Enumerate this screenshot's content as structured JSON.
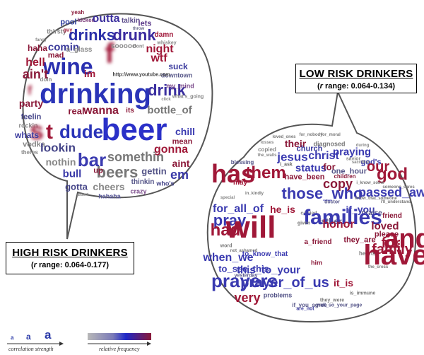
{
  "high_risk": {
    "title": "HIGH RISK DRINKERS",
    "range_prefix": "r",
    "range_value": " range: 0.064-0.177)",
    "range_open": "(",
    "words": [
      {
        "t": "yeah",
        "c": "#8a1a3a",
        "s": 8
      },
      {
        "t": "pool",
        "c": "#2d3b9a",
        "s": 11
      },
      {
        "t": "kicked",
        "c": "#7a3a7a",
        "s": 8
      },
      {
        "t": "outta",
        "c": "#3b2f9e",
        "s": 16
      },
      {
        "t": "talkin",
        "c": "#5a4a8a",
        "s": 10
      },
      {
        "t": "lets",
        "c": "#5c3a8a",
        "s": 11
      },
      {
        "t": "throw",
        "c": "#666688",
        "s": 6
      },
      {
        "t": "thirsty",
        "c": "#888888",
        "s": 9
      },
      {
        "t": "guy",
        "c": "#a01838",
        "s": 7
      },
      {
        "t": "drinks",
        "c": "#2a2fa8",
        "s": 22
      },
      {
        "t": "drunk",
        "c": "#3a2a9e",
        "s": 22
      },
      {
        "t": "damn",
        "c": "#a0183a",
        "s": 10
      },
      {
        "t": "whiskey",
        "c": "#888888",
        "s": 7
      },
      {
        "t": "fancy",
        "c": "#888888",
        "s": 6
      },
      {
        "t": "haha",
        "c": "#8a1838",
        "s": 12
      },
      {
        "t": "comin",
        "c": "#3a3a9a",
        "s": 15
      },
      {
        "t": "a_glass",
        "c": "#888888",
        "s": 10
      },
      {
        "t": "f",
        "c": "#a01838",
        "s": 40,
        "blur": true
      },
      {
        "t": "sooooo",
        "c": "#888888",
        "s": 10
      },
      {
        "t": "dont",
        "c": "#888888",
        "s": 7
      },
      {
        "t": "night",
        "c": "#a01838",
        "s": 16
      },
      {
        "t": "mad",
        "c": "#8a1838",
        "s": 11
      },
      {
        "t": "wine",
        "c": "#2a30b0",
        "s": 32
      },
      {
        "t": "wtf",
        "c": "#a01838",
        "s": 16
      },
      {
        "t": "hell",
        "c": "#a01838",
        "s": 16
      },
      {
        "t": "suck",
        "c": "#3a3a9e",
        "s": 12
      },
      {
        "t": "downtown",
        "c": "#5a5a8a",
        "s": 9
      },
      {
        "t": "im",
        "c": "#a01838",
        "s": 14
      },
      {
        "t": "http://www.youtube.com",
        "c": "#444444",
        "s": 7
      },
      {
        "t": "ain't",
        "c": "#8a1a3a",
        "s": 18
      },
      {
        "t": "doin",
        "c": "#888888",
        "s": 8
      },
      {
        "t": "drinking",
        "c": "#2a34b8",
        "s": 40
      },
      {
        "t": "drink",
        "c": "#3a2fa0",
        "s": 22
      },
      {
        "t": "my_mind",
        "c": "#7a4a8a",
        "s": 9
      },
      {
        "t": "what's_going",
        "c": "#888888",
        "s": 7
      },
      {
        "t": "f",
        "c": "#a01838",
        "s": 18,
        "blur": true
      },
      {
        "t": "party",
        "c": "#8a1838",
        "s": 14
      },
      {
        "t": "click",
        "c": "#888888",
        "s": 6
      },
      {
        "t": "feelin",
        "c": "#444488",
        "s": 11
      },
      {
        "t": "real",
        "c": "#8a1838",
        "s": 13
      },
      {
        "t": "wanna",
        "c": "#8a1838",
        "s": 16
      },
      {
        "t": "its",
        "c": "#8a1838",
        "s": 10
      },
      {
        "t": "bottle_of",
        "c": "#777777",
        "s": 15
      },
      {
        "t": "rockin",
        "c": "#888888",
        "s": 9
      },
      {
        "t": "s",
        "c": "#a01838",
        "s": 36,
        "blur": true
      },
      {
        "t": "t",
        "c": "#a01838",
        "s": 30
      },
      {
        "t": "dude",
        "c": "#2a34b8",
        "s": 26
      },
      {
        "t": "beer",
        "c": "#2a30c8",
        "s": 44
      },
      {
        "t": "chill",
        "c": "#3a3ab0",
        "s": 14
      },
      {
        "t": "mean",
        "c": "#8a1a3a",
        "s": 11
      },
      {
        "t": "whats",
        "c": "#3a3a9e",
        "s": 12
      },
      {
        "t": "vodka",
        "c": "#888888",
        "s": 11
      },
      {
        "t": "lookin",
        "c": "#444488",
        "s": 17
      },
      {
        "t": "somethin",
        "c": "#777777",
        "s": 18
      },
      {
        "t": "gonna",
        "c": "#a01838",
        "s": 16
      },
      {
        "t": "theres",
        "c": "#888888",
        "s": 8
      },
      {
        "t": "nothin",
        "c": "#888888",
        "s": 14
      },
      {
        "t": "bar",
        "c": "#3a3ab0",
        "s": 26
      },
      {
        "t": "aint",
        "c": "#8a1838",
        "s": 14
      },
      {
        "t": "gettin",
        "c": "#555588",
        "s": 13
      },
      {
        "t": "em",
        "c": "#3a3aa8",
        "s": 18
      },
      {
        "t": "beers",
        "c": "#777777",
        "s": 22
      },
      {
        "t": "bull",
        "c": "#3a3aa8",
        "s": 15
      },
      {
        "t": "up",
        "c": "#8a1838",
        "s": 11
      },
      {
        "t": "gotta",
        "c": "#444488",
        "s": 13
      },
      {
        "t": "cheers",
        "c": "#888888",
        "s": 14
      },
      {
        "t": "thinkin",
        "c": "#555588",
        "s": 10
      },
      {
        "t": "who's",
        "c": "#444488",
        "s": 9
      },
      {
        "t": "crazy",
        "c": "#7a4a8a",
        "s": 9
      },
      {
        "t": "hahaha",
        "c": "#5a5a9a",
        "s": 9
      },
      {
        "t": "albert",
        "c": "#888888",
        "s": 6
      }
    ]
  },
  "low_risk": {
    "title": "LOW RISK DRINKERS",
    "range_prefix": "r",
    "range_value": " range: 0.064-0.134)",
    "range_open": "(",
    "words": [
      {
        "t": "loved_ones",
        "c": "#777777",
        "s": 6
      },
      {
        "t": "for_nobody",
        "c": "#777777",
        "s": 6
      },
      {
        "t": "for_moral",
        "c": "#777777",
        "s": 6
      },
      {
        "t": "their",
        "c": "#8a1838",
        "s": 14
      },
      {
        "t": "losses",
        "c": "#888888",
        "s": 6
      },
      {
        "t": "diagnosed",
        "c": "#777777",
        "s": 9
      },
      {
        "t": "church",
        "c": "#3a3a9e",
        "s": 11
      },
      {
        "t": "copied",
        "c": "#888888",
        "s": 8
      },
      {
        "t": "praying",
        "c": "#3a3ab0",
        "s": 15
      },
      {
        "t": "during",
        "c": "#888888",
        "s": 6
      },
      {
        "t": "the_walls",
        "c": "#888888",
        "s": 6
      },
      {
        "t": "jesus",
        "c": "#3a3ab0",
        "s": 17
      },
      {
        "t": "christ",
        "c": "#3a3ab0",
        "s": 16
      },
      {
        "t": "savior",
        "c": "#888888",
        "s": 7
      },
      {
        "t": "god's",
        "c": "#3a3aa8",
        "s": 11
      },
      {
        "t": "blessing",
        "c": "#555588",
        "s": 8
      },
      {
        "t": "i_ask",
        "c": "#666666",
        "s": 7
      },
      {
        "t": "status",
        "c": "#3a3ab0",
        "s": 15
      },
      {
        "t": "for",
        "c": "#8a1838",
        "s": 13
      },
      {
        "t": "sacrifice",
        "c": "#888888",
        "s": 6
      },
      {
        "t": "our",
        "c": "#a01838",
        "s": 20
      },
      {
        "t": "has",
        "c": "#a01838",
        "s": 36
      },
      {
        "t": "them",
        "c": "#a01838",
        "s": 24
      },
      {
        "t": "have_been",
        "c": "#8a1838",
        "s": 11
      },
      {
        "t": "one_hour",
        "c": "#555588",
        "s": 11
      },
      {
        "t": "may",
        "c": "#a01838",
        "s": 10
      },
      {
        "t": "children",
        "c": "#8a1838",
        "s": 8
      },
      {
        "t": "god",
        "c": "#a01838",
        "s": 24
      },
      {
        "t": "copy",
        "c": "#8a1838",
        "s": 18
      },
      {
        "t": "i_know_some",
        "c": "#777777",
        "s": 6
      },
      {
        "t": "someone_cares",
        "c": "#777777",
        "s": 6
      },
      {
        "t": "passed_away",
        "c": "#3a3ab0",
        "s": 18
      },
      {
        "t": "in_kindly",
        "c": "#777777",
        "s": 6
      },
      {
        "t": "those_who",
        "c": "#3a3ab0",
        "s": 22
      },
      {
        "t": "doctor",
        "c": "#555588",
        "s": 7
      },
      {
        "t": "know_that_someone",
        "c": "#777777",
        "s": 6
      },
      {
        "t": "i'll_understand",
        "c": "#777777",
        "s": 6
      },
      {
        "t": "special",
        "c": "#888888",
        "s": 6
      },
      {
        "t": "for_all_of",
        "c": "#3a3ab0",
        "s": 16
      },
      {
        "t": "he_is",
        "c": "#a01838",
        "s": 14
      },
      {
        "t": "if_you",
        "c": "#3a3ab0",
        "s": 14
      },
      {
        "t": "carried",
        "c": "#888888",
        "s": 7
      },
      {
        "t": "praise",
        "c": "#555588",
        "s": 10
      },
      {
        "t": "friend",
        "c": "#8a1838",
        "s": 10
      },
      {
        "t": "father",
        "c": "#555588",
        "s": 12
      },
      {
        "t": "pray",
        "c": "#3a3ab0",
        "s": 22
      },
      {
        "t": "families",
        "c": "#3a3ab0",
        "s": 30
      },
      {
        "t": "given",
        "c": "#777777",
        "s": 7
      },
      {
        "t": "honor",
        "c": "#a01838",
        "s": 16
      },
      {
        "t": "loved",
        "c": "#8a1838",
        "s": 15
      },
      {
        "t": "had",
        "c": "#a01838",
        "s": 24
      },
      {
        "t": "will",
        "c": "#a01838",
        "s": 44
      },
      {
        "t": "they_are",
        "c": "#8a1838",
        "s": 11
      },
      {
        "t": "please",
        "c": "#8a1838",
        "s": 11
      },
      {
        "t": "and",
        "c": "#a01838",
        "s": 38
      },
      {
        "t": "a_friend",
        "c": "#8a1838",
        "s": 10
      },
      {
        "t": "for",
        "c": "#a01838",
        "s": 20
      },
      {
        "t": "word",
        "c": "#777777",
        "s": 7
      },
      {
        "t": "not_ashamed",
        "c": "#777777",
        "s": 6
      },
      {
        "t": "to_know_that",
        "c": "#3a3ab0",
        "s": 10
      },
      {
        "t": "family",
        "c": "#a01838",
        "s": 20
      },
      {
        "t": "when_we",
        "c": "#3a3ab0",
        "s": 16
      },
      {
        "t": "hearts",
        "c": "#777777",
        "s": 8
      },
      {
        "t": "have",
        "c": "#a01838",
        "s": 40
      },
      {
        "t": "him",
        "c": "#8a1838",
        "s": 9
      },
      {
        "t": "to_see_this",
        "c": "#3a3ab0",
        "s": 13
      },
      {
        "t": "this_to_your",
        "c": "#3a3ab0",
        "s": 15
      },
      {
        "t": "the_cross",
        "c": "#777777",
        "s": 6
      },
      {
        "t": "yesterday",
        "c": "#555588",
        "s": 7
      },
      {
        "t": "prayers",
        "c": "#3a3ab0",
        "s": 26
      },
      {
        "t": "prayer_of_us",
        "c": "#3a3ab0",
        "s": 20
      },
      {
        "t": "it_is",
        "c": "#a01838",
        "s": 14
      },
      {
        "t": "very",
        "c": "#a01838",
        "s": 18
      },
      {
        "t": "problems",
        "c": "#555588",
        "s": 9
      },
      {
        "t": "if_you_agree",
        "c": "#555588",
        "s": 8
      },
      {
        "t": "they_were",
        "c": "#777777",
        "s": 7
      },
      {
        "t": "is_immune",
        "c": "#777777",
        "s": 7
      },
      {
        "t": "wall_so_your_page",
        "c": "#555588",
        "s": 7
      },
      {
        "t": "are_not",
        "c": "#3a3a9e",
        "s": 7
      }
    ]
  },
  "legend": {
    "letters": [
      "a",
      "a",
      "a"
    ],
    "strength_label": "correlation strength",
    "frequency_label": "relative frequency"
  }
}
